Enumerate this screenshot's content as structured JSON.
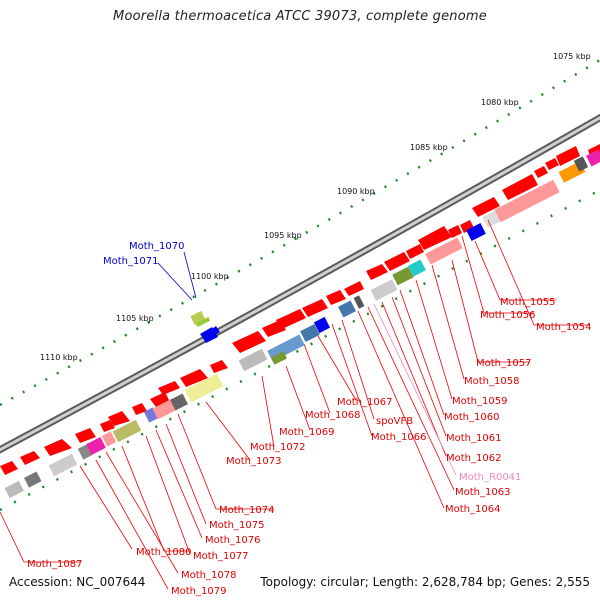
{
  "title": "Moorella thermoacetica ATCC 39073, complete genome",
  "footer": {
    "accession": "Accession: NC_007644",
    "summary": "Topology: circular; Length: 2,628,784 bp; Genes: 2,555"
  },
  "ruler": [
    {
      "label": "1075 kbp"
    },
    {
      "label": "1080 kbp"
    },
    {
      "label": "1085 kbp"
    },
    {
      "label": "1090 kbp"
    },
    {
      "label": "1095 kbp"
    },
    {
      "label": "1100 kbp"
    },
    {
      "label": "1105 kbp"
    },
    {
      "label": "1110 kbp"
    }
  ],
  "gene_labels": {
    "blue": [
      "Moth_1070",
      "Moth_1071"
    ],
    "red": [
      "Moth_1055",
      "Moth_1056",
      "Moth_1054",
      "Moth_1057",
      "Moth_1058",
      "Moth_1059",
      "Moth_1060",
      "Moth_1061",
      "Moth_1062",
      "Moth_1063",
      "Moth_1064",
      "Moth_1067",
      "Moth_1068",
      "spoVFB",
      "Moth_1066",
      "Moth_1069",
      "Moth_1072",
      "Moth_1073",
      "Moth_1074",
      "Moth_1075",
      "Moth_1076",
      "Moth_1077",
      "Moth_1080",
      "Moth_1078",
      "Moth_1079",
      "Moth_1087"
    ],
    "pink": [
      "Moth_R0041"
    ]
  },
  "colors": {
    "cds": "#ff0000",
    "blue_gene": "#0000cc",
    "rna": "#ee88bb",
    "tick": "#228822",
    "backbone": "#777777"
  }
}
